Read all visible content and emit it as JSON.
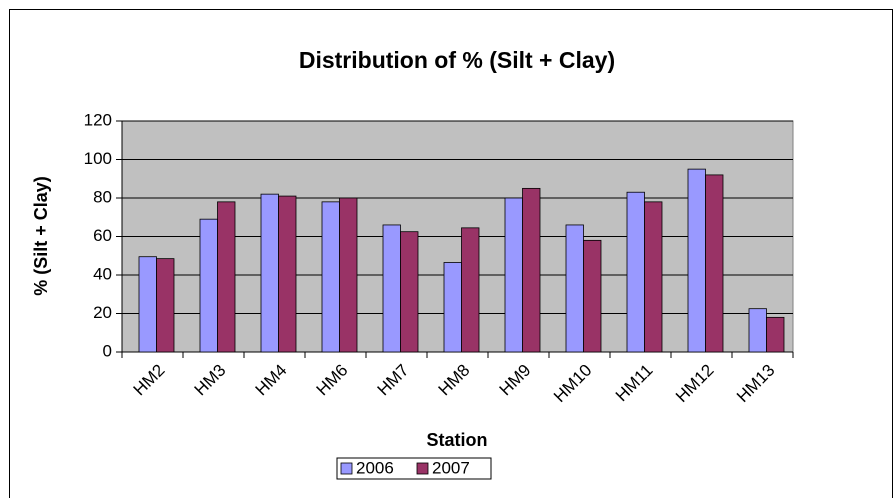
{
  "chart_data": {
    "type": "bar",
    "title": "Distribution of % (Silt + Clay)",
    "x_label": "Station",
    "y_label": "% (Silt + Clay)",
    "categories": [
      "HM2",
      "HM3",
      "HM4",
      "HM6",
      "HM7",
      "HM8",
      "HM9",
      "HM10",
      "HM11",
      "HM12",
      "HM13"
    ],
    "series": [
      {
        "name": "2006",
        "color": "#9999ff",
        "values": [
          49.5,
          69,
          82,
          78,
          66,
          46.5,
          80,
          66,
          83,
          95,
          22.5
        ]
      },
      {
        "name": "2007",
        "color": "#993366",
        "values": [
          48.5,
          78,
          81,
          80,
          62.5,
          64.5,
          85,
          58,
          78,
          92,
          18
        ]
      }
    ],
    "ylim": [
      0,
      120
    ],
    "yticks": [
      0,
      20,
      40,
      60,
      80,
      100,
      120
    ],
    "grid": true,
    "legend": "bottom"
  }
}
